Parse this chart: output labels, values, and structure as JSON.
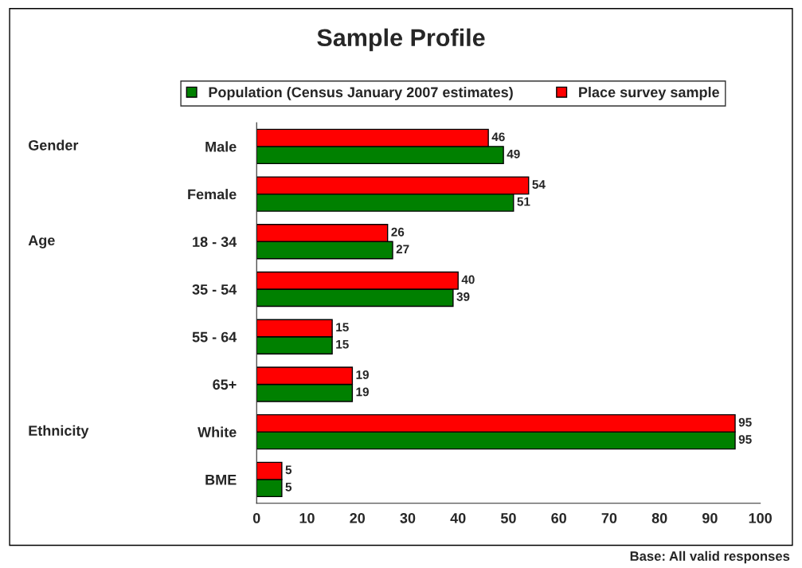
{
  "chart_data": {
    "type": "bar",
    "orientation": "horizontal",
    "title": "Sample Profile",
    "categories": [
      "Male",
      "Female",
      "18 - 34",
      "35 - 54",
      "55 - 64",
      "65+",
      "White",
      "BME"
    ],
    "series": [
      {
        "name": "Population (Census January 2007 estimates)",
        "color": "#008000",
        "values": [
          49,
          51,
          27,
          39,
          15,
          19,
          95,
          5
        ]
      },
      {
        "name": "Place survey sample",
        "color": "#ff0000",
        "values": [
          46,
          54,
          26,
          40,
          15,
          19,
          95,
          5
        ]
      }
    ],
    "xlim": [
      0,
      100
    ],
    "xticks": [
      0,
      10,
      20,
      30,
      40,
      50,
      60,
      70,
      80,
      90,
      100
    ],
    "grid": false,
    "legend": "top",
    "data_labels": true,
    "annotations": [
      "Gender",
      "Age",
      "Ethnicity",
      "Base: All valid responses"
    ]
  }
}
